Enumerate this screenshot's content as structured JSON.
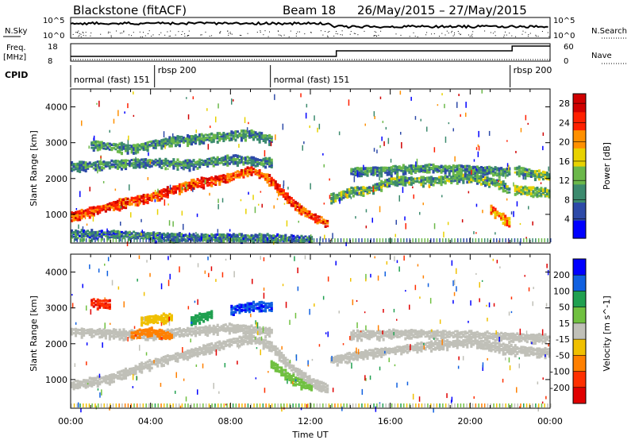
{
  "header": {
    "radar": "Blackstone (fitACF)",
    "beam": "Beam 18",
    "date_range": "26/May/2015 – 27/May/2015"
  },
  "params": {
    "nsky_label": "N.Sky",
    "nsearch_label": "N.Search",
    "freq_label_1": "Freq.",
    "freq_label_2": "[MHz]",
    "nave_label": "Nave",
    "cpid_label": "CPID",
    "nsky_ticks": [
      "10^5",
      "10^0"
    ],
    "nsearch_ticks": [
      "10^5",
      "10^0"
    ],
    "freq_ticks": [
      "18",
      "8"
    ],
    "nave_ticks": [
      "60",
      "0"
    ],
    "cpid_segments": [
      {
        "label": "normal (fast) 151",
        "start_hour": 0
      },
      {
        "label": "rbsp 200",
        "start_hour": 4.2
      },
      {
        "label": "normal (fast) 151",
        "start_hour": 10
      },
      {
        "label": "rbsp 200",
        "start_hour": 22
      }
    ]
  },
  "chart_data": [
    {
      "type": "heatmap",
      "panel": "power",
      "xlabel": "Time UT",
      "ylabel": "Slant Range [km]",
      "x_ticks": [
        "00:00",
        "04:00",
        "08:00",
        "12:00",
        "16:00",
        "20:00",
        "00:00"
      ],
      "xlim_hours": [
        0,
        24
      ],
      "y_ticks": [
        1000,
        2000,
        3000,
        4000
      ],
      "ylim": [
        200,
        4500
      ],
      "colorbar": {
        "label": "Power [dB]",
        "ticks": [
          4,
          8,
          12,
          16,
          20,
          24,
          28
        ],
        "range": [
          0,
          30
        ],
        "colors": [
          "#0000ff",
          "#2d4aa8",
          "#3c8a6e",
          "#6bb84a",
          "#e8d200",
          "#ff9000",
          "#ff2000",
          "#d00000"
        ]
      },
      "bands": [
        {
          "points": [
            [
              0,
              1000
            ],
            [
              2,
              1300
            ],
            [
              4,
              1550
            ],
            [
              6,
              1900
            ],
            [
              8,
              2100
            ],
            [
              9,
              2300
            ],
            [
              10,
              2000
            ],
            [
              11,
              1400
            ],
            [
              12,
              1000
            ],
            [
              12.8,
              800
            ]
          ],
          "level": 24
        },
        {
          "points": [
            [
              0,
              2400
            ],
            [
              2,
              2450
            ],
            [
              4,
              2500
            ],
            [
              6,
              2450
            ],
            [
              8,
              2600
            ],
            [
              10,
              2500
            ]
          ],
          "level": 9
        },
        {
          "points": [
            [
              1,
              3000
            ],
            [
              3,
              2900
            ],
            [
              5,
              3100
            ],
            [
              7,
              3200
            ],
            [
              9,
              3300
            ],
            [
              10,
              3150
            ]
          ],
          "level": 10
        },
        {
          "points": [
            [
              13,
              1500
            ],
            [
              14,
              1700
            ],
            [
              15,
              1750
            ],
            [
              16,
              2000
            ],
            [
              18,
              2000
            ],
            [
              20,
              2100
            ],
            [
              21.5,
              1900
            ],
            [
              22,
              1700
            ]
          ],
          "level": 11
        },
        {
          "points": [
            [
              14,
              2250
            ],
            [
              16,
              2300
            ],
            [
              18,
              2350
            ],
            [
              20,
              2300
            ],
            [
              22,
              2250
            ]
          ],
          "level": 10
        },
        {
          "points": [
            [
              21,
              1200
            ],
            [
              21.5,
              1000
            ],
            [
              22,
              800
            ]
          ],
          "level": 20
        },
        {
          "points": [
            [
              0,
              500
            ],
            [
              2,
              500
            ],
            [
              4,
              450
            ],
            [
              6,
              400
            ],
            [
              9,
              400
            ],
            [
              12,
              350
            ]
          ],
          "level": 8
        },
        {
          "points": [
            [
              22.2,
              2300
            ],
            [
              23,
              2200
            ],
            [
              24,
              2100
            ]
          ],
          "level": 12
        },
        {
          "points": [
            [
              22.2,
              1750
            ],
            [
              23,
              1700
            ],
            [
              24,
              1650
            ]
          ],
          "level": 14
        }
      ]
    },
    {
      "type": "heatmap",
      "panel": "velocity",
      "xlabel": "Time UT",
      "ylabel": "Slant Range [km]",
      "x_ticks": [
        "00:00",
        "04:00",
        "08:00",
        "12:00",
        "16:00",
        "20:00",
        "00:00"
      ],
      "xlim_hours": [
        0,
        24
      ],
      "y_ticks": [
        1000,
        2000,
        3000,
        4000
      ],
      "ylim": [
        200,
        4500
      ],
      "colorbar": {
        "label": "Velocity [m s^-1]",
        "ticks": [
          200,
          100,
          50,
          15,
          -15,
          -50,
          -100,
          -200
        ],
        "range": [
          -250,
          250
        ],
        "colors": [
          "#0000ff",
          "#1060e0",
          "#20a050",
          "#70c040",
          "#c0c0b8",
          "#f0c000",
          "#ff8000",
          "#ff3000",
          "#e00000"
        ]
      },
      "bands": [
        {
          "points": [
            [
              0,
              900
            ],
            [
              2,
              1100
            ],
            [
              4,
              1500
            ],
            [
              6,
              1800
            ],
            [
              8,
              2100
            ],
            [
              9,
              2200
            ],
            [
              10,
              2000
            ],
            [
              11,
              1400
            ],
            [
              12,
              1000
            ],
            [
              12.8,
              800
            ]
          ],
          "level": 0
        },
        {
          "points": [
            [
              0,
              2400
            ],
            [
              2,
              2350
            ],
            [
              4,
              2300
            ],
            [
              6,
              2400
            ],
            [
              8,
              2500
            ],
            [
              10,
              2400
            ]
          ],
          "level": 0
        },
        {
          "points": [
            [
              3,
              2300
            ],
            [
              4,
              2400
            ],
            [
              5,
              2250
            ]
          ],
          "level": -120
        },
        {
          "points": [
            [
              1,
              3200
            ],
            [
              2,
              3150
            ]
          ],
          "level": -180
        },
        {
          "points": [
            [
              3.5,
              2700
            ],
            [
              5,
              2800
            ]
          ],
          "level": -60
        },
        {
          "points": [
            [
              8,
              3000
            ],
            [
              9,
              3100
            ],
            [
              10,
              3100
            ]
          ],
          "level": 190
        },
        {
          "points": [
            [
              6,
              2700
            ],
            [
              7,
              2900
            ]
          ],
          "level": 120
        },
        {
          "points": [
            [
              13,
              1600
            ],
            [
              15,
              1800
            ],
            [
              18,
              2000
            ],
            [
              20,
              2100
            ],
            [
              22,
              1900
            ],
            [
              24,
              1800
            ]
          ],
          "level": 0
        },
        {
          "points": [
            [
              14,
              2300
            ],
            [
              17,
              2350
            ],
            [
              20,
              2300
            ],
            [
              24,
              2200
            ]
          ],
          "level": 0
        },
        {
          "points": [
            [
              10,
              1500
            ],
            [
              11,
              1100
            ],
            [
              12,
              800
            ]
          ],
          "level": 60
        }
      ]
    }
  ]
}
